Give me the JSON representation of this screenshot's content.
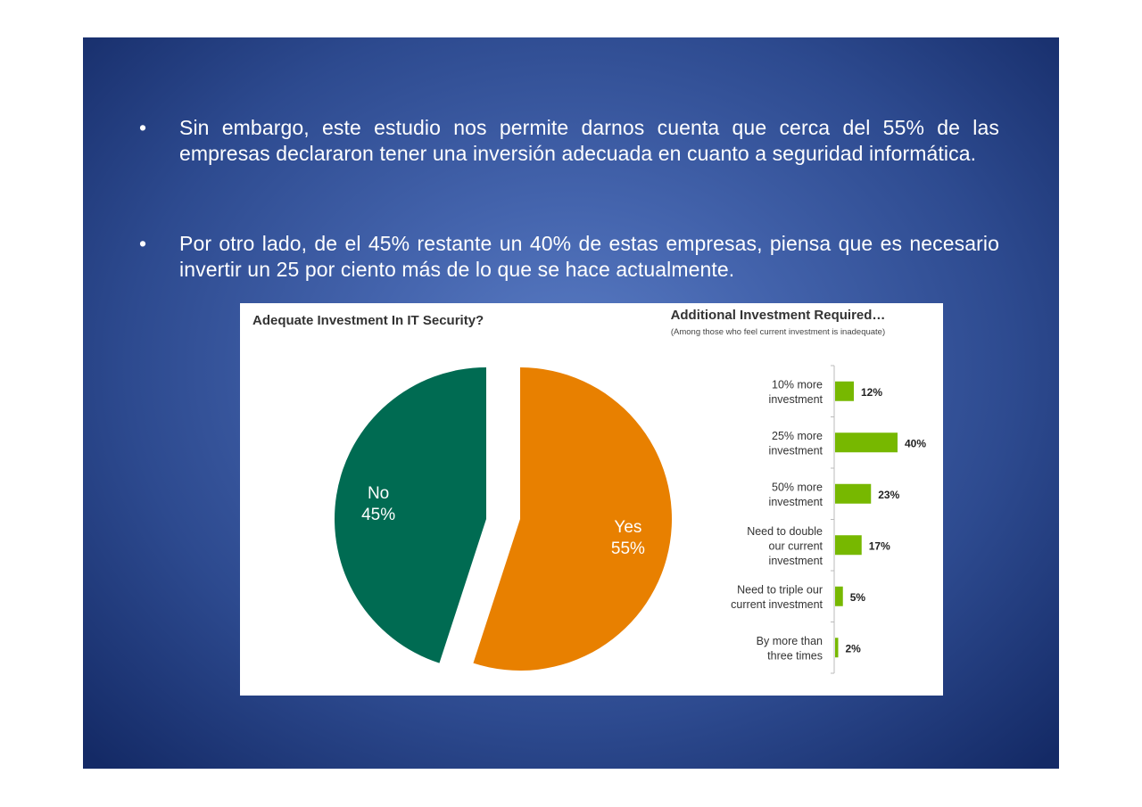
{
  "slide": {
    "bullets": [
      "Sin embargo, este estudio nos permite darnos cuenta que cerca del 55% de las empresas declararon tener una inversión adecuada en cuanto a seguridad informática.",
      "Por otro lado, de el 45% restante un 40% de estas empresas, piensa que es necesario invertir un 25 por ciento más de lo que se hace actualmente."
    ],
    "bullet_glyph": "•"
  },
  "chart_data": [
    {
      "type": "pie",
      "title": "Adequate Investment In IT Security?",
      "slices": [
        {
          "label": "Yes",
          "value": 55,
          "value_label": "55%",
          "color": "#e88000",
          "exploded": true
        },
        {
          "label": "No",
          "value": 45,
          "value_label": "45%",
          "color": "#006b52",
          "exploded": false
        }
      ]
    },
    {
      "type": "bar",
      "orientation": "horizontal",
      "title": "Additional Investment Required…",
      "subtitle": "(Among those who feel current investment is inadequate)",
      "categories": [
        [
          "10% more",
          "investment"
        ],
        [
          "25% more",
          "investment"
        ],
        [
          "50% more",
          "investment"
        ],
        [
          "Need to double",
          "our current",
          "investment"
        ],
        [
          "Need to triple our",
          "current investment"
        ],
        [
          "By more than",
          "three times"
        ]
      ],
      "values": [
        12,
        40,
        23,
        17,
        5,
        2
      ],
      "value_labels": [
        "12%",
        "40%",
        "23%",
        "17%",
        "5%",
        "2%"
      ],
      "color": "#77b800",
      "grid": false
    }
  ]
}
